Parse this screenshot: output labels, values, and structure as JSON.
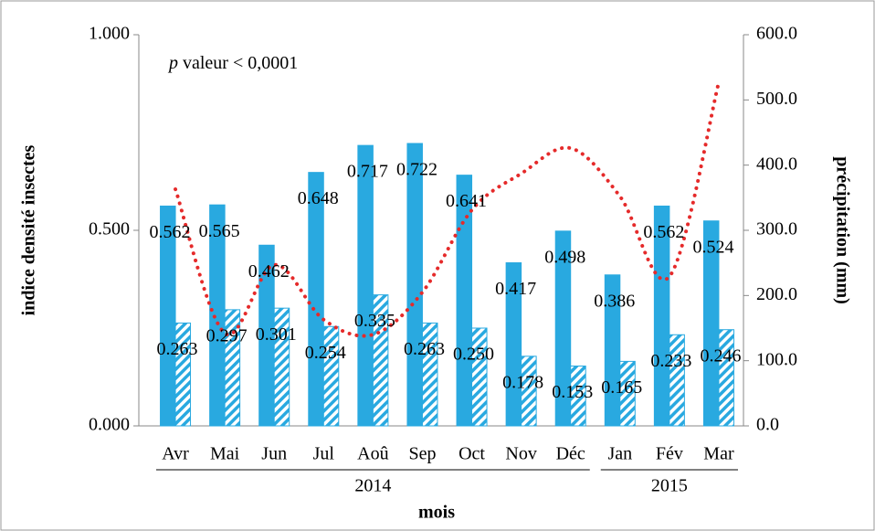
{
  "chart_data": {
    "type": "bar",
    "annotation_italic": "p",
    "annotation": "valeur < 0,0001",
    "xlabel": "mois",
    "ylabel": "indice densité insectes",
    "y2label": "précipitation (mm)",
    "categories": [
      "Avr",
      "Mai",
      "Jun",
      "Jul",
      "Aoû",
      "Sep",
      "Oct",
      "Nov",
      "Déc",
      "Jan",
      "Fév",
      "Mar"
    ],
    "groups": [
      {
        "label": "2014",
        "count": 9
      },
      {
        "label": "2015",
        "count": 3
      }
    ],
    "series": [
      {
        "color": "#29a9e0",
        "values": [
          0.562,
          0.565,
          0.462,
          0.648,
          0.717,
          0.722,
          0.641,
          0.417,
          0.498,
          0.386,
          0.562,
          0.524
        ],
        "value_labels": [
          "0.562",
          "0.565",
          "0.462",
          "0.648",
          "0.717",
          "0.722",
          "0.641",
          "0.417",
          "0.498",
          "0.386",
          "0.562",
          "0.524"
        ]
      },
      {
        "color": "#29a9e0",
        "pattern": "hatch",
        "values": [
          0.263,
          0.297,
          0.301,
          0.254,
          0.335,
          0.263,
          0.25,
          0.178,
          0.153,
          0.165,
          0.233,
          0.246
        ],
        "value_labels": [
          "0.263",
          "0.297",
          "0.301",
          "0.254",
          "0.335",
          "0.263",
          "0.250",
          "0.178",
          "0.153",
          "0.165",
          "0.233",
          "0.246"
        ]
      },
      {
        "type": "line",
        "axis": "y2",
        "color": "#e52a2a",
        "values": [
          363,
          142,
          247,
          163,
          140,
          205,
          331,
          387,
          426,
          352,
          229,
          527
        ]
      }
    ],
    "ylim": [
      0,
      1
    ],
    "yticks": [
      {
        "value": 0,
        "label": "0.000"
      },
      {
        "value": 0.5,
        "label": "0.500"
      },
      {
        "value": 1,
        "label": "1.000"
      }
    ],
    "y2lim": [
      0,
      600
    ],
    "y2ticks": [
      {
        "value": 0,
        "label": "0.0"
      },
      {
        "value": 100,
        "label": "100.0"
      },
      {
        "value": 200,
        "label": "200.0"
      },
      {
        "value": 300,
        "label": "300.0"
      },
      {
        "value": 400,
        "label": "400.0"
      },
      {
        "value": 500,
        "label": "500.0"
      },
      {
        "value": 600,
        "label": "600.0"
      }
    ]
  }
}
